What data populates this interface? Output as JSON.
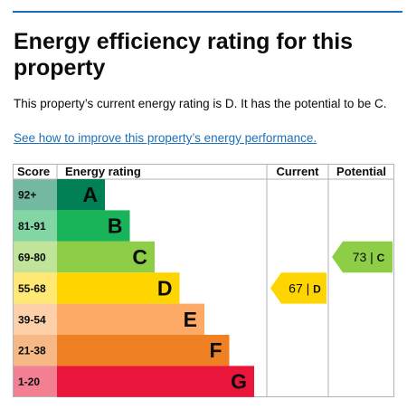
{
  "heading": "Energy efficiency rating for this property",
  "summary": "This property’s current energy rating is D. It has the potential to be C.",
  "improve_link": "See how to improve this property’s energy performance.",
  "chart_data": {
    "type": "table",
    "headers": {
      "score": "Score",
      "rating": "Energy rating",
      "current": "Current",
      "potential": "Potential"
    },
    "bands": [
      {
        "score": "92+",
        "letter": "A",
        "color": "#008054",
        "text_color": "#0b0c0c"
      },
      {
        "score": "81-91",
        "letter": "B",
        "color": "#19b459",
        "text_color": "#0b0c0c"
      },
      {
        "score": "69-80",
        "letter": "C",
        "color": "#8dce46",
        "text_color": "#0b0c0c"
      },
      {
        "score": "55-68",
        "letter": "D",
        "color": "#ffd500",
        "text_color": "#0b0c0c"
      },
      {
        "score": "39-54",
        "letter": "E",
        "color": "#fcaa65",
        "text_color": "#0b0c0c"
      },
      {
        "score": "21-38",
        "letter": "F",
        "color": "#ef8023",
        "text_color": "#0b0c0c"
      },
      {
        "score": "1-20",
        "letter": "G",
        "color": "#e9153b",
        "text_color": "#0b0c0c"
      }
    ],
    "current": {
      "value": 67,
      "letter": "D",
      "color": "#ffd500"
    },
    "potential": {
      "value": 73,
      "letter": "C",
      "color": "#8dce46"
    }
  }
}
